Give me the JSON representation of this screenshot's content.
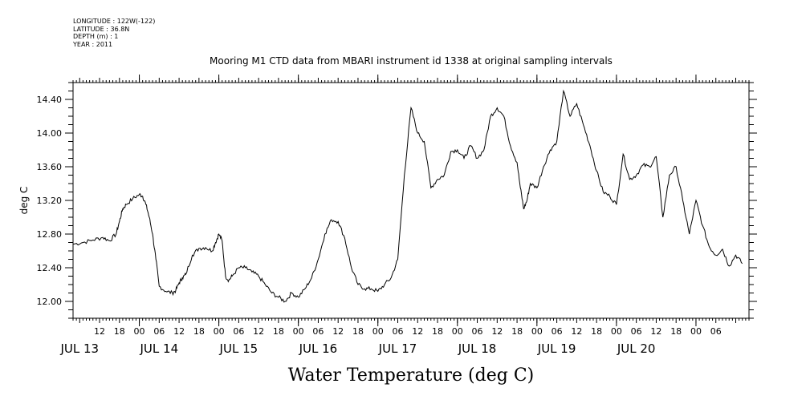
{
  "header": {
    "longitude": "LONGITUDE : 122W(-122)",
    "latitude": "LATITUDE : 36.8N",
    "depth": "DEPTH (m) : 1",
    "year": "YEAR : 2011"
  },
  "chart_data": {
    "type": "line",
    "title": "Mooring M1 CTD data from MBARI instrument id 1338 at original sampling intervals",
    "xlabel": "Water Temperature (deg C)",
    "ylabel": "deg C",
    "ylim": [
      11.8,
      14.6
    ],
    "xlim": [
      -14,
      190
    ],
    "y_ticks": [
      "12.00",
      "12.40",
      "12.80",
      "13.20",
      "13.60",
      "14.00",
      "14.40"
    ],
    "x_hour_ticks": [
      {
        "t": -6,
        "label": "12"
      },
      {
        "t": 0,
        "label": "18"
      },
      {
        "t": 6,
        "label": "00"
      },
      {
        "t": 12,
        "label": "06"
      },
      {
        "t": 18,
        "label": "12"
      },
      {
        "t": 24,
        "label": "18"
      },
      {
        "t": 30,
        "label": "00"
      },
      {
        "t": 36,
        "label": "06"
      },
      {
        "t": 42,
        "label": "12"
      },
      {
        "t": 48,
        "label": "18"
      },
      {
        "t": 54,
        "label": "00"
      },
      {
        "t": 60,
        "label": "06"
      },
      {
        "t": 66,
        "label": "12"
      },
      {
        "t": 72,
        "label": "18"
      },
      {
        "t": 78,
        "label": "00"
      },
      {
        "t": 84,
        "label": "06"
      },
      {
        "t": 90,
        "label": "12"
      },
      {
        "t": 96,
        "label": "18"
      },
      {
        "t": 102,
        "label": "00"
      },
      {
        "t": 108,
        "label": "06"
      },
      {
        "t": 114,
        "label": "12"
      },
      {
        "t": 120,
        "label": "18"
      },
      {
        "t": 126,
        "label": "00"
      },
      {
        "t": 132,
        "label": "06"
      },
      {
        "t": 138,
        "label": "12"
      },
      {
        "t": 144,
        "label": "18"
      },
      {
        "t": 150,
        "label": "00"
      },
      {
        "t": 156,
        "label": "06"
      },
      {
        "t": 162,
        "label": "12"
      },
      {
        "t": 168,
        "label": "18"
      },
      {
        "t": 174,
        "label": "00"
      },
      {
        "t": 180,
        "label": "06"
      }
    ],
    "x_day_labels": [
      {
        "t": -12,
        "label": "JUL 13"
      },
      {
        "t": 12,
        "label": "JUL 14"
      },
      {
        "t": 36,
        "label": "JUL 15"
      },
      {
        "t": 60,
        "label": "JUL 16"
      },
      {
        "t": 84,
        "label": "JUL 17"
      },
      {
        "t": 108,
        "label": "JUL 18"
      },
      {
        "t": 132,
        "label": "JUL 19"
      },
      {
        "t": 156,
        "label": "JUL 20"
      }
    ],
    "series": [
      {
        "x": [
          -14,
          -11,
          -8,
          -5,
          -3,
          -1,
          0,
          1,
          2,
          4,
          6,
          7,
          8,
          9,
          10,
          11,
          12,
          14,
          16,
          17,
          18,
          19,
          20,
          22,
          24,
          26,
          28,
          29,
          30,
          31,
          32,
          33,
          34,
          36,
          38,
          40,
          42,
          44,
          46,
          48,
          50,
          52,
          54,
          56,
          58,
          60,
          62,
          64,
          66,
          68,
          70,
          72,
          74,
          76,
          78,
          80,
          82,
          84,
          86,
          88,
          90,
          92,
          94,
          96,
          98,
          100,
          102,
          104,
          106,
          108,
          110,
          112,
          114,
          116,
          118,
          120,
          121,
          122,
          123,
          124,
          126,
          128,
          130,
          132,
          134,
          136,
          138,
          140,
          142,
          144,
          146,
          148,
          150,
          152,
          154,
          156,
          158,
          160,
          162,
          164,
          166,
          168,
          170,
          172,
          174,
          176,
          178,
          180,
          182,
          184,
          186,
          188
        ],
        "y": [
          12.68,
          12.7,
          12.73,
          12.76,
          12.72,
          12.8,
          12.95,
          13.1,
          13.15,
          13.22,
          13.27,
          13.25,
          13.15,
          13.0,
          12.8,
          12.5,
          12.18,
          12.12,
          12.1,
          12.13,
          12.22,
          12.28,
          12.32,
          12.55,
          12.63,
          12.64,
          12.6,
          12.7,
          12.8,
          12.72,
          12.3,
          12.25,
          12.3,
          12.4,
          12.4,
          12.35,
          12.3,
          12.2,
          12.1,
          12.05,
          12.0,
          12.1,
          12.05,
          12.15,
          12.28,
          12.5,
          12.8,
          12.97,
          12.95,
          12.75,
          12.4,
          12.2,
          12.15,
          12.15,
          12.12,
          12.2,
          12.28,
          12.5,
          13.5,
          14.3,
          14.0,
          13.9,
          13.35,
          13.45,
          13.5,
          13.78,
          13.8,
          13.7,
          13.85,
          13.7,
          13.8,
          14.2,
          14.3,
          14.2,
          13.85,
          13.65,
          13.35,
          13.1,
          13.2,
          13.4,
          13.35,
          13.6,
          13.8,
          13.9,
          14.5,
          14.2,
          14.35,
          14.1,
          13.85,
          13.55,
          13.3,
          13.25,
          13.15,
          13.75,
          13.45,
          13.5,
          13.62,
          13.6,
          13.72,
          13.0,
          13.5,
          13.6,
          13.2,
          12.8,
          13.2,
          12.9,
          12.65,
          12.55,
          12.62,
          12.42,
          12.55,
          12.45
        ]
      }
    ],
    "grid": false
  }
}
